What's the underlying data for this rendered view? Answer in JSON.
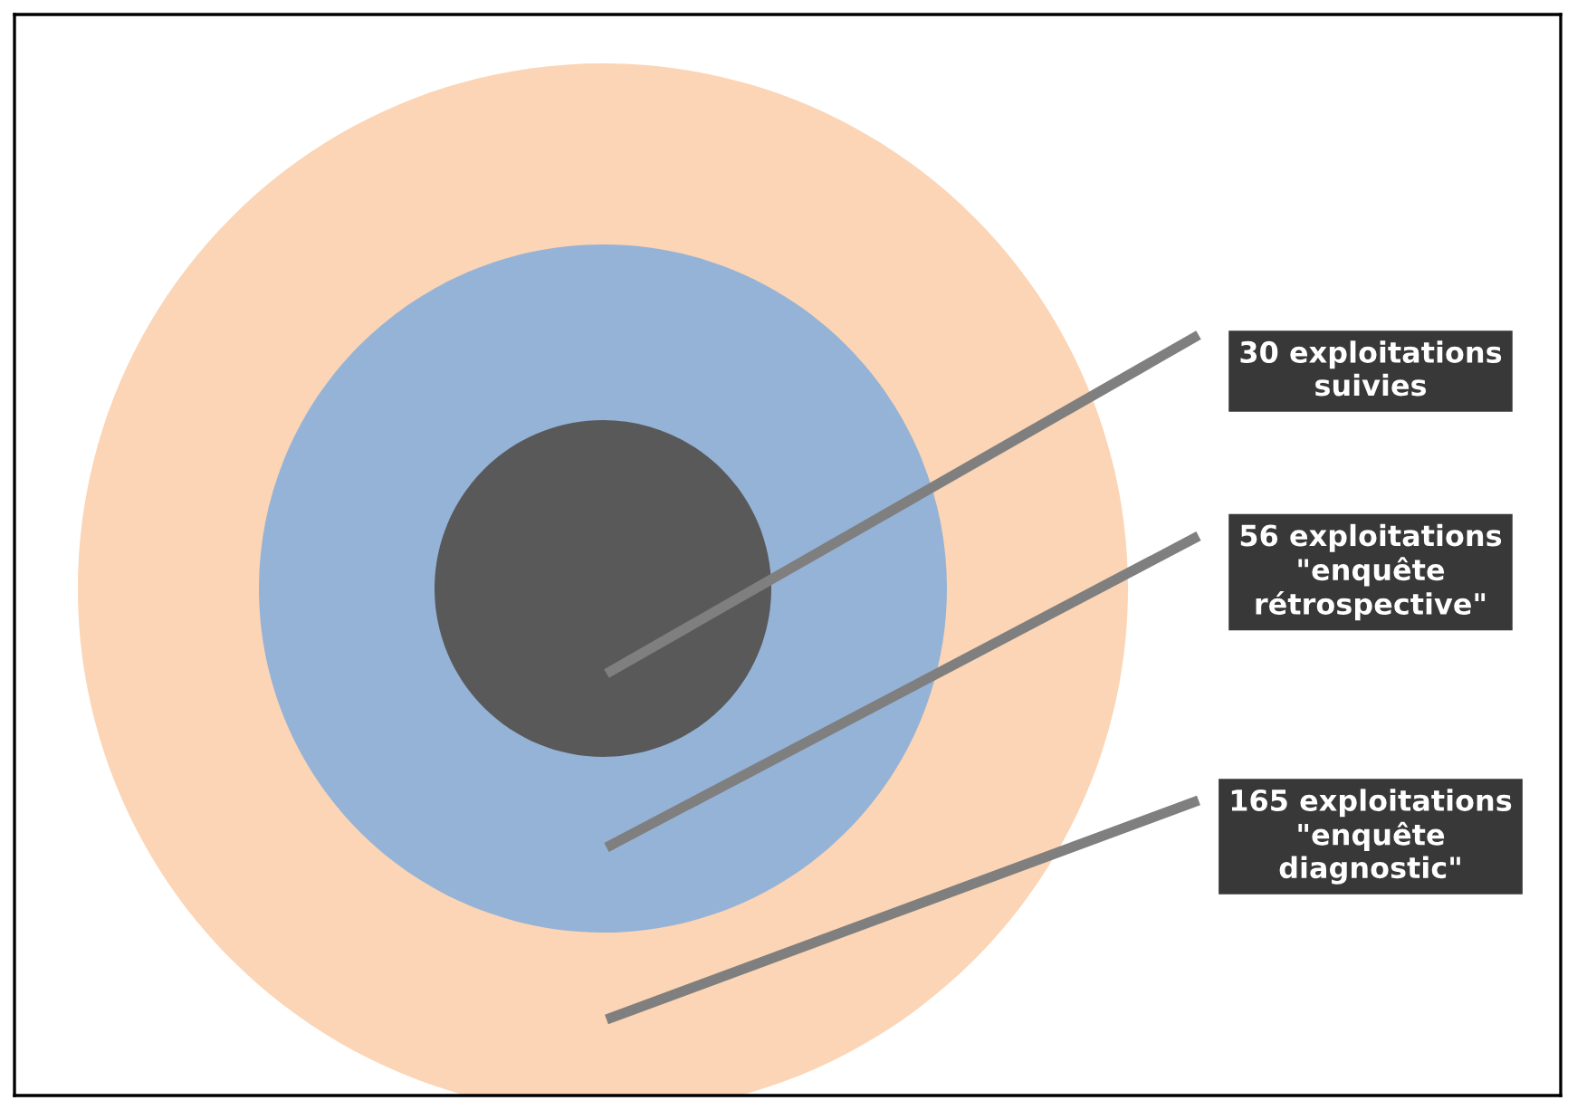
{
  "chart_data": {
    "type": "other",
    "categories": [
      "exploitations\nsuivies",
      "exploitations\n\"enquête\nrétrospective\"",
      "exploitations\n\"enquête\ndiagnostic\""
    ],
    "values": [
      30,
      56,
      165
    ],
    "data_labels": true
  }
}
